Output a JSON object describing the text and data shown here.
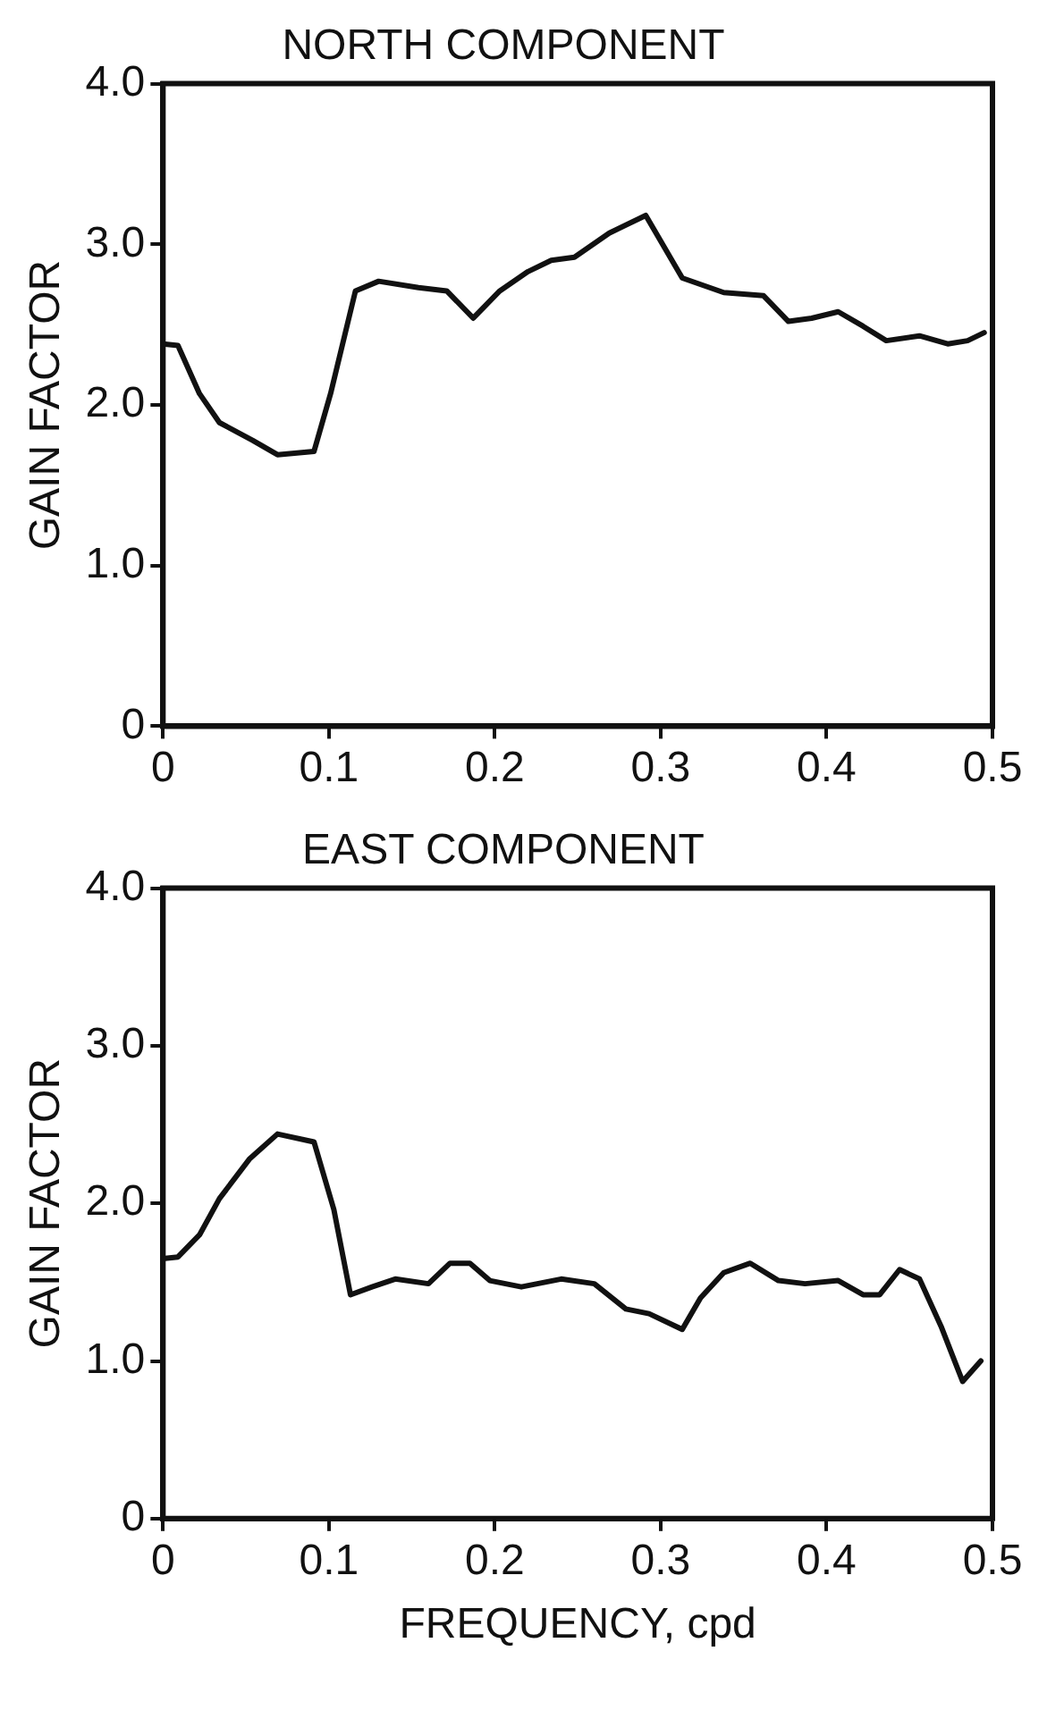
{
  "chart_data": [
    {
      "type": "line",
      "title": "NORTH COMPONENT",
      "ylabel": "GAIN FACTOR",
      "xlim": [
        0,
        0.5
      ],
      "xticks": [
        {
          "value": 0,
          "label": "0"
        },
        {
          "value": 0.1,
          "label": "0.1"
        },
        {
          "value": 0.2,
          "label": "0.2"
        },
        {
          "value": 0.3,
          "label": "0.3"
        },
        {
          "value": 0.4,
          "label": "0.4"
        },
        {
          "value": 0.5,
          "label": "0.5"
        }
      ],
      "ylim": [
        0,
        4
      ],
      "yticks": [
        {
          "value": 0,
          "label": "0"
        },
        {
          "value": 1,
          "label": "1.0"
        },
        {
          "value": 2,
          "label": "2.0"
        },
        {
          "value": 3,
          "label": "3.0"
        },
        {
          "value": 4,
          "label": "4.0"
        }
      ],
      "grid": false,
      "legend": false,
      "marker": "none",
      "line_style": "solid",
      "series": [
        {
          "color": "#111111",
          "x": [
            0,
            0.009,
            0.022,
            0.034,
            0.054,
            0.069,
            0.091,
            0.101,
            0.116,
            0.13,
            0.154,
            0.171,
            0.187,
            0.203,
            0.22,
            0.234,
            0.248,
            0.269,
            0.291,
            0.313,
            0.338,
            0.362,
            0.377,
            0.391,
            0.407,
            0.422,
            0.436,
            0.456,
            0.473,
            0.485,
            0.495
          ],
          "values": [
            2.38,
            2.37,
            2.07,
            1.89,
            1.78,
            1.69,
            1.71,
            2.07,
            2.71,
            2.77,
            2.73,
            2.71,
            2.54,
            2.71,
            2.83,
            2.9,
            2.92,
            3.07,
            3.18,
            2.79,
            2.7,
            2.68,
            2.52,
            2.54,
            2.58,
            2.49,
            2.4,
            2.43,
            2.38,
            2.4,
            2.45
          ]
        }
      ]
    },
    {
      "type": "line",
      "title": "EAST COMPONENT",
      "ylabel": "GAIN FACTOR",
      "xlabel": "FREQUENCY, cpd",
      "xlim": [
        0,
        0.5
      ],
      "xticks": [
        {
          "value": 0,
          "label": "0"
        },
        {
          "value": 0.1,
          "label": "0.1"
        },
        {
          "value": 0.2,
          "label": "0.2"
        },
        {
          "value": 0.3,
          "label": "0.3"
        },
        {
          "value": 0.4,
          "label": "0.4"
        },
        {
          "value": 0.5,
          "label": "0.5"
        }
      ],
      "ylim": [
        0,
        4
      ],
      "yticks": [
        {
          "value": 0,
          "label": "0"
        },
        {
          "value": 1,
          "label": "1.0"
        },
        {
          "value": 2,
          "label": "2.0"
        },
        {
          "value": 3,
          "label": "3.0"
        },
        {
          "value": 4,
          "label": "4.0"
        }
      ],
      "grid": false,
      "legend": false,
      "marker": "none",
      "line_style": "solid",
      "series": [
        {
          "color": "#111111",
          "x": [
            0,
            0.009,
            0.022,
            0.034,
            0.052,
            0.069,
            0.091,
            0.103,
            0.113,
            0.126,
            0.14,
            0.16,
            0.173,
            0.185,
            0.197,
            0.216,
            0.24,
            0.26,
            0.279,
            0.293,
            0.313,
            0.324,
            0.338,
            0.354,
            0.371,
            0.387,
            0.407,
            0.422,
            0.432,
            0.444,
            0.456,
            0.469,
            0.482,
            0.493
          ],
          "values": [
            1.65,
            1.66,
            1.8,
            2.03,
            2.28,
            2.44,
            2.39,
            1.96,
            1.42,
            1.47,
            1.52,
            1.49,
            1.62,
            1.62,
            1.51,
            1.47,
            1.52,
            1.49,
            1.33,
            1.3,
            1.2,
            1.4,
            1.56,
            1.62,
            1.51,
            1.49,
            1.51,
            1.42,
            1.42,
            1.58,
            1.52,
            1.22,
            0.87,
            1.0
          ]
        }
      ]
    }
  ]
}
